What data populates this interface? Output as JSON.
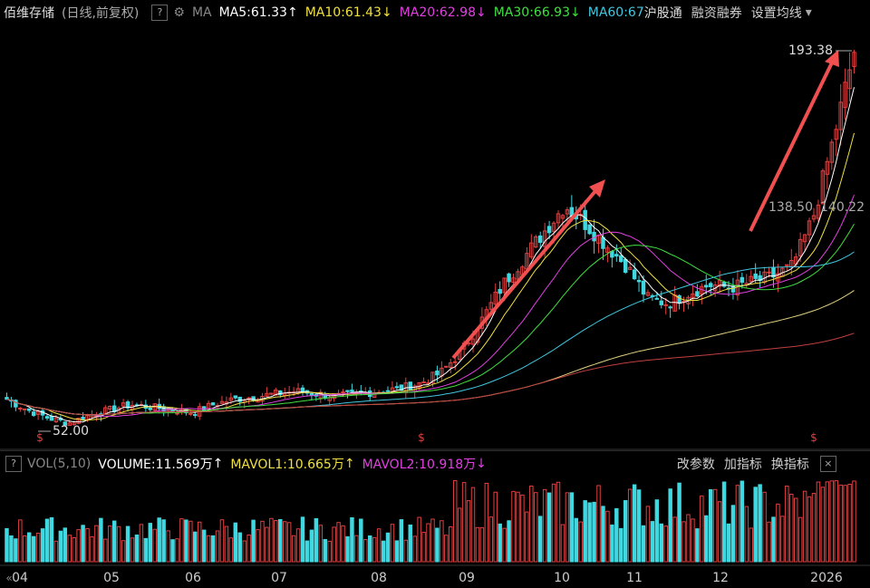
{
  "header": {
    "stock_name": "佰维存储",
    "period_label": "(日线,前复权)",
    "help": "?",
    "ma_label": "MA",
    "ma5": "MA5:61.33",
    "ma10": "MA10:61.43",
    "ma20": "MA20:62.98",
    "ma30": "MA30:66.93",
    "ma60": "MA60:67",
    "btn_hgt": "沪股通",
    "btn_rzrq": "融资融券",
    "btn_settings": "设置均线",
    "up_arrow": "↑",
    "down_arrow": "↓",
    "caret": "▾"
  },
  "colors": {
    "ma5": "#ffffff",
    "ma10": "#f0e040",
    "ma20": "#e040e0",
    "ma30": "#40e040",
    "ma60": "#40c8e0",
    "up": "#e04040",
    "down": "#40d8e0",
    "ma120": "#e0d080",
    "ma250": "#c04040"
  },
  "price_labels": {
    "high": "193.38",
    "low": "52.00",
    "mid_a": "138.50",
    "mid_b": "140.22"
  },
  "volume_bar": {
    "help": "?",
    "vol_label": "VOL(5,10)",
    "volume": "VOLUME:11.569万",
    "mavol1": "MAVOL1:10.665万",
    "mavol2": "MAVOL2:10.918万",
    "btn_params": "改参数",
    "btn_add": "加指标",
    "btn_switch": "换指标",
    "close": "×"
  },
  "x_axis": {
    "months": [
      "04",
      "05",
      "06",
      "07",
      "08",
      "09",
      "10",
      "11",
      "12",
      "2026"
    ]
  },
  "chart_data": {
    "type": "candlestick",
    "title": "佰维存储 (日线,前复权)",
    "price_range": [
      52.0,
      193.38
    ],
    "annotations": [
      "193.38",
      "52.00",
      "138.50",
      "140.22"
    ],
    "close_trend": [
      62,
      58,
      55,
      53,
      56,
      58,
      60,
      59,
      58,
      57,
      60,
      62,
      63,
      64,
      65,
      64,
      63,
      64,
      65,
      66,
      68,
      72,
      80,
      92,
      105,
      115,
      125,
      135,
      128,
      120,
      112,
      100,
      98,
      102,
      105,
      104,
      106,
      108,
      112,
      130,
      160,
      193
    ]
  }
}
